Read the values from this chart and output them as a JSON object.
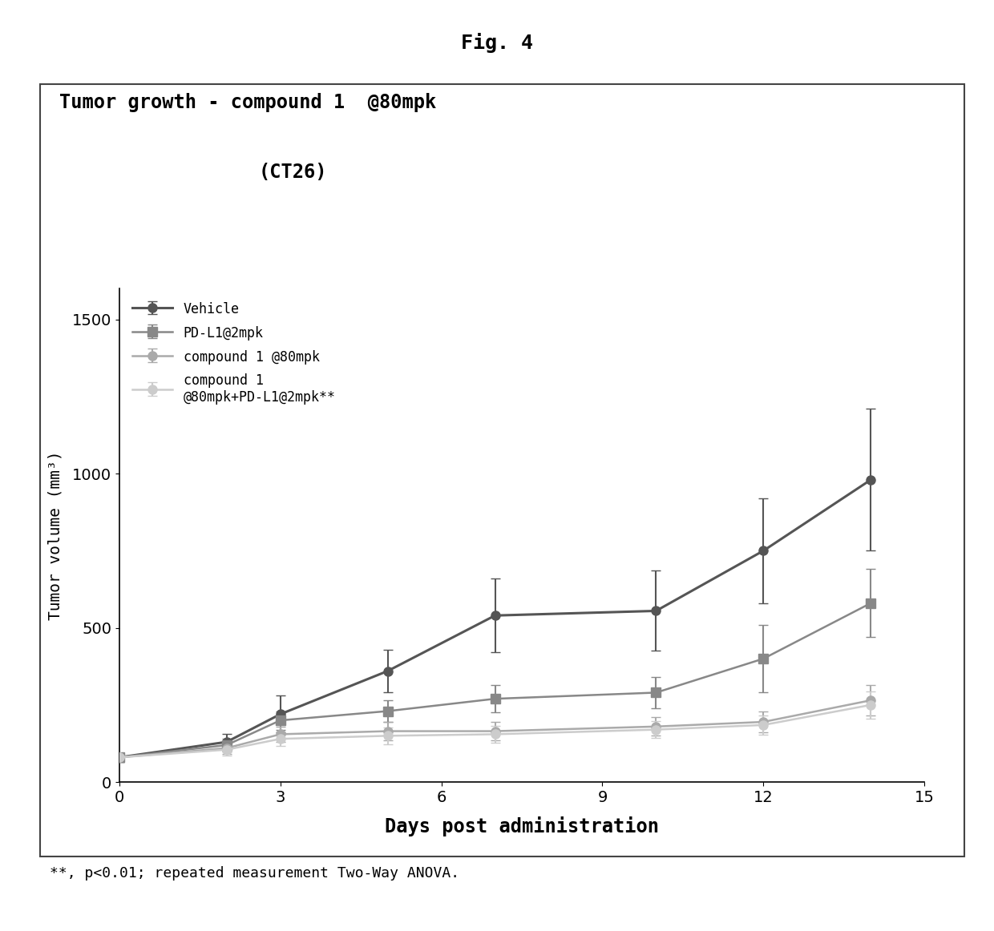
{
  "title_line1": "Tumor growth - compound 1  @80mpk",
  "title_line2": "(CT26)",
  "fig_title": "Fig. 4",
  "xlabel": "Days post administration",
  "ylabel": "Tumor volume (mm³)",
  "footnote": "**, p<0.01; repeated measurement Two-Way ANOVA.",
  "xlim": [
    0,
    15
  ],
  "ylim": [
    0,
    1600
  ],
  "xticks": [
    0,
    3,
    6,
    9,
    12,
    15
  ],
  "yticks": [
    0,
    500,
    1000,
    1500
  ],
  "series": [
    {
      "label": "Vehicle",
      "x": [
        0,
        2,
        3,
        5,
        7,
        10,
        12,
        14
      ],
      "y": [
        80,
        130,
        220,
        360,
        540,
        555,
        750,
        980
      ],
      "yerr": [
        15,
        25,
        60,
        70,
        120,
        130,
        170,
        230
      ],
      "color": "#555555",
      "marker": "o",
      "markersize": 8,
      "linewidth": 2.2
    },
    {
      "label": "PD-L1@2mpk",
      "x": [
        0,
        2,
        3,
        5,
        7,
        10,
        12,
        14
      ],
      "y": [
        80,
        120,
        200,
        230,
        270,
        290,
        400,
        580
      ],
      "yerr": [
        15,
        20,
        30,
        35,
        45,
        50,
        110,
        110
      ],
      "color": "#888888",
      "marker": "s",
      "markersize": 8,
      "linewidth": 1.8
    },
    {
      "label": "compound 1 @80mpk",
      "x": [
        0,
        2,
        3,
        5,
        7,
        10,
        12,
        14
      ],
      "y": [
        80,
        110,
        155,
        165,
        165,
        180,
        195,
        265
      ],
      "yerr": [
        15,
        20,
        25,
        30,
        30,
        30,
        35,
        50
      ],
      "color": "#aaaaaa",
      "marker": "o",
      "markersize": 8,
      "linewidth": 1.8
    },
    {
      "label": "compound 1\n@80mpk+PD-L1@2mpk**",
      "x": [
        0,
        2,
        3,
        5,
        7,
        10,
        12,
        14
      ],
      "y": [
        80,
        105,
        140,
        150,
        155,
        170,
        185,
        250
      ],
      "yerr": [
        15,
        18,
        22,
        28,
        28,
        28,
        32,
        45
      ],
      "color": "#cccccc",
      "marker": "o",
      "markersize": 8,
      "linewidth": 1.8
    }
  ],
  "background_color": "#ffffff",
  "box_background": "#ffffff",
  "border_color": "#444444"
}
